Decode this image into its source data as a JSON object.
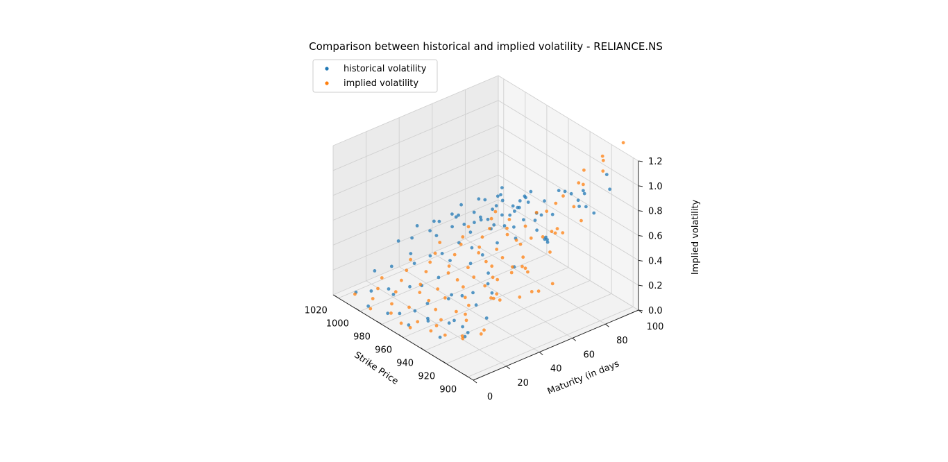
{
  "chart_data": {
    "type": "scatter",
    "projection": "3d",
    "title": "Comparison between historical and implied volatility - RELIANCE.NS",
    "xlabel": "Strike Price",
    "ylabel": "Maturity (in days",
    "zlabel": "Implied volatility",
    "xlim": [
      895,
      1025
    ],
    "ylim": [
      0,
      100
    ],
    "zlim": [
      0,
      1.2
    ],
    "xticks": [
      "900",
      "920",
      "940",
      "960",
      "980",
      "1000",
      "1020"
    ],
    "yticks": [
      "0",
      "20",
      "40",
      "60",
      "80",
      "100"
    ],
    "zticks": [
      "0.0",
      "0.2",
      "0.4",
      "0.6",
      "0.8",
      "1.0",
      "1.2"
    ],
    "grid": true,
    "legend_position": "upper-left",
    "series": [
      {
        "name": "historical volatility",
        "color": "#1f77b4",
        "points": [
          [
            900,
            5,
            0.55
          ],
          [
            901,
            12,
            0.4
          ],
          [
            903,
            30,
            0.7
          ],
          [
            905,
            45,
            0.9
          ],
          [
            905,
            70,
            1.0
          ],
          [
            906,
            88,
            1.1
          ],
          [
            908,
            2,
            0.35
          ],
          [
            909,
            18,
            0.6
          ],
          [
            911,
            35,
            0.95
          ],
          [
            912,
            55,
            0.75
          ],
          [
            913,
            80,
            0.85
          ],
          [
            914,
            95,
            0.9
          ],
          [
            915,
            8,
            0.2
          ],
          [
            916,
            25,
            0.45
          ],
          [
            917,
            40,
            0.8
          ],
          [
            918,
            60,
            0.65
          ],
          [
            919,
            75,
            0.95
          ],
          [
            921,
            90,
            0.7
          ],
          [
            922,
            3,
            0.3
          ],
          [
            923,
            15,
            0.15
          ],
          [
            924,
            28,
            0.55
          ],
          [
            925,
            50,
            0.85
          ],
          [
            926,
            65,
            0.6
          ],
          [
            927,
            85,
            0.75
          ],
          [
            928,
            10,
            0.25
          ],
          [
            929,
            22,
            0.4
          ],
          [
            931,
            38,
            0.7
          ],
          [
            932,
            52,
            0.9
          ],
          [
            933,
            68,
            0.55
          ],
          [
            934,
            92,
            0.8
          ],
          [
            935,
            6,
            0.1
          ],
          [
            936,
            20,
            0.35
          ],
          [
            937,
            33,
            0.6
          ],
          [
            938,
            47,
            0.75
          ],
          [
            939,
            62,
            0.85
          ],
          [
            941,
            78,
            0.65
          ],
          [
            942,
            98,
            0.7
          ],
          [
            943,
            4,
            0.2
          ],
          [
            944,
            17,
            0.3
          ],
          [
            945,
            31,
            0.5
          ],
          [
            946,
            44,
            0.7
          ],
          [
            947,
            58,
            0.8
          ],
          [
            948,
            72,
            0.6
          ],
          [
            949,
            87,
            0.75
          ],
          [
            951,
            9,
            0.15
          ],
          [
            952,
            24,
            0.25
          ],
          [
            953,
            37,
            0.55
          ],
          [
            954,
            51,
            0.65
          ],
          [
            955,
            66,
            0.7
          ],
          [
            956,
            81,
            0.55
          ],
          [
            957,
            96,
            0.65
          ],
          [
            958,
            2,
            0.1
          ],
          [
            959,
            14,
            0.2
          ],
          [
            961,
            29,
            0.45
          ],
          [
            962,
            42,
            0.6
          ],
          [
            963,
            56,
            0.7
          ],
          [
            964,
            70,
            0.6
          ],
          [
            965,
            84,
            0.5
          ],
          [
            966,
            11,
            0.12
          ],
          [
            967,
            26,
            0.3
          ],
          [
            968,
            39,
            0.5
          ],
          [
            969,
            53,
            0.6
          ],
          [
            971,
            67,
            0.55
          ],
          [
            972,
            82,
            0.6
          ],
          [
            973,
            94,
            0.5
          ],
          [
            974,
            7,
            0.08
          ],
          [
            975,
            21,
            0.22
          ],
          [
            976,
            34,
            0.4
          ],
          [
            977,
            48,
            0.55
          ],
          [
            978,
            63,
            0.5
          ],
          [
            979,
            77,
            0.45
          ],
          [
            981,
            91,
            0.55
          ],
          [
            982,
            5,
            0.05
          ],
          [
            983,
            19,
            0.18
          ],
          [
            984,
            32,
            0.35
          ],
          [
            985,
            46,
            0.5
          ],
          [
            986,
            60,
            0.45
          ],
          [
            987,
            74,
            0.5
          ],
          [
            988,
            89,
            0.45
          ],
          [
            989,
            13,
            0.12
          ],
          [
            991,
            27,
            0.28
          ],
          [
            992,
            41,
            0.42
          ],
          [
            993,
            55,
            0.5
          ],
          [
            994,
            69,
            0.4
          ],
          [
            995,
            83,
            0.45
          ],
          [
            996,
            97,
            0.4
          ],
          [
            997,
            3,
            0.04
          ],
          [
            998,
            16,
            0.1
          ],
          [
            999,
            30,
            0.3
          ],
          [
            1001,
            43,
            0.4
          ],
          [
            1002,
            57,
            0.45
          ],
          [
            1003,
            71,
            0.38
          ],
          [
            1004,
            86,
            0.42
          ],
          [
            1005,
            10,
            0.08
          ],
          [
            1006,
            23,
            0.2
          ],
          [
            1007,
            36,
            0.35
          ],
          [
            1008,
            50,
            0.4
          ],
          [
            1009,
            64,
            0.35
          ],
          [
            1011,
            79,
            0.4
          ],
          [
            1012,
            93,
            0.35
          ],
          [
            1013,
            6,
            0.05
          ],
          [
            1014,
            18,
            0.15
          ],
          [
            1015,
            33,
            0.3
          ],
          [
            1016,
            45,
            0.35
          ],
          [
            1017,
            59,
            0.3
          ],
          [
            1018,
            73,
            0.35
          ],
          [
            1019,
            88,
            0.3
          ],
          [
            1020,
            99,
            0.33
          ]
        ]
      },
      {
        "name": "implied volatility",
        "color": "#ff7f0e",
        "points": [
          [
            900,
            8,
            0.3
          ],
          [
            901,
            20,
            0.5
          ],
          [
            902,
            40,
            0.45
          ],
          [
            904,
            60,
            0.8
          ],
          [
            905,
            85,
            1.15
          ],
          [
            906,
            98,
            1.3
          ],
          [
            907,
            3,
            0.45
          ],
          [
            908,
            15,
            0.25
          ],
          [
            910,
            33,
            0.6
          ],
          [
            911,
            50,
            0.35
          ],
          [
            912,
            72,
            0.9
          ],
          [
            913,
            90,
            1.2
          ],
          [
            914,
            6,
            0.2
          ],
          [
            916,
            26,
            0.4
          ],
          [
            917,
            44,
            0.55
          ],
          [
            918,
            63,
            0.3
          ],
          [
            919,
            81,
            0.7
          ],
          [
            920,
            95,
            1.1
          ],
          [
            922,
            11,
            0.15
          ],
          [
            923,
            29,
            0.35
          ],
          [
            924,
            47,
            0.25
          ],
          [
            925,
            66,
            0.5
          ],
          [
            926,
            84,
            0.95
          ],
          [
            928,
            2,
            0.3
          ],
          [
            929,
            18,
            0.2
          ],
          [
            930,
            37,
            0.3
          ],
          [
            931,
            55,
            0.4
          ],
          [
            932,
            75,
            0.6
          ],
          [
            934,
            92,
            0.85
          ],
          [
            935,
            9,
            0.1
          ],
          [
            936,
            24,
            0.25
          ],
          [
            937,
            42,
            0.35
          ],
          [
            938,
            61,
            0.3
          ],
          [
            940,
            79,
            0.5
          ],
          [
            941,
            97,
            0.9
          ],
          [
            942,
            5,
            0.12
          ],
          [
            943,
            21,
            0.18
          ],
          [
            944,
            39,
            0.28
          ],
          [
            946,
            57,
            0.32
          ],
          [
            947,
            76,
            0.45
          ],
          [
            948,
            89,
            0.7
          ],
          [
            949,
            13,
            0.08
          ],
          [
            950,
            31,
            0.2
          ],
          [
            952,
            49,
            0.25
          ],
          [
            953,
            68,
            0.3
          ],
          [
            954,
            86,
            0.4
          ],
          [
            955,
            1,
            0.1
          ],
          [
            956,
            17,
            0.15
          ],
          [
            958,
            35,
            0.22
          ],
          [
            959,
            53,
            0.28
          ],
          [
            960,
            71,
            0.35
          ],
          [
            961,
            93,
            0.55
          ],
          [
            962,
            10,
            0.06
          ],
          [
            964,
            28,
            0.14
          ],
          [
            965,
            46,
            0.2
          ],
          [
            966,
            64,
            0.25
          ],
          [
            967,
            82,
            0.3
          ],
          [
            968,
            4,
            0.05
          ],
          [
            970,
            22,
            0.12
          ],
          [
            971,
            40,
            0.18
          ],
          [
            972,
            58,
            0.22
          ],
          [
            973,
            77,
            0.28
          ],
          [
            974,
            96,
            0.4
          ],
          [
            976,
            14,
            0.08
          ],
          [
            977,
            32,
            0.12
          ],
          [
            978,
            51,
            0.18
          ],
          [
            979,
            69,
            0.22
          ],
          [
            980,
            87,
            0.3
          ],
          [
            982,
            7,
            0.04
          ],
          [
            983,
            25,
            0.1
          ],
          [
            984,
            43,
            0.15
          ],
          [
            985,
            62,
            0.2
          ],
          [
            986,
            80,
            0.24
          ],
          [
            988,
            99,
            0.3
          ],
          [
            989,
            12,
            0.05
          ],
          [
            990,
            30,
            0.1
          ],
          [
            991,
            48,
            0.14
          ],
          [
            992,
            67,
            0.18
          ],
          [
            994,
            85,
            0.22
          ],
          [
            995,
            3,
            0.03
          ],
          [
            996,
            19,
            0.07
          ],
          [
            997,
            38,
            0.12
          ],
          [
            998,
            56,
            0.15
          ],
          [
            1000,
            74,
            0.18
          ],
          [
            1001,
            91,
            0.22
          ],
          [
            1002,
            9,
            0.04
          ],
          [
            1003,
            27,
            0.08
          ],
          [
            1004,
            45,
            0.12
          ],
          [
            1006,
            65,
            0.14
          ],
          [
            1007,
            83,
            0.16
          ],
          [
            1008,
            16,
            0.05
          ],
          [
            1009,
            34,
            0.09
          ],
          [
            1010,
            52,
            0.12
          ],
          [
            1012,
            70,
            0.14
          ],
          [
            1013,
            88,
            0.18
          ],
          [
            1014,
            6,
            0.03
          ],
          [
            1015,
            23,
            0.06
          ],
          [
            1016,
            41,
            0.1
          ],
          [
            1018,
            60,
            0.12
          ],
          [
            1019,
            78,
            0.14
          ],
          [
            1020,
            95,
            0.16
          ]
        ]
      }
    ]
  }
}
